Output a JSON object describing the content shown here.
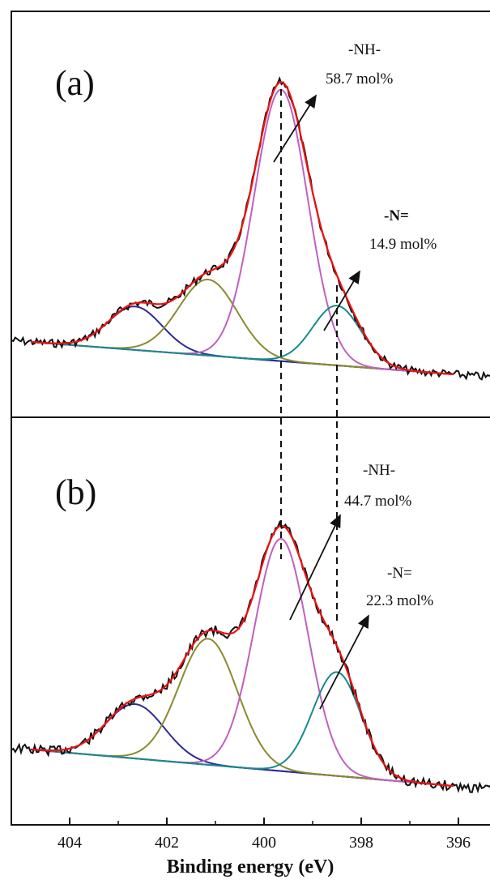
{
  "chart_data": [
    {
      "panel": "(a)",
      "type": "line",
      "xlabel": "",
      "ylabel": "",
      "xlim": [
        405.2,
        395.2
      ],
      "x_reversed": true,
      "yticks": false,
      "annotations": [
        {
          "label": "-NH-",
          "value": "58.7 mol%"
        },
        {
          "label": "-N=",
          "value": "14.9 mol%"
        }
      ],
      "series": [
        {
          "role": "background",
          "color": "#2b2b8f"
        },
        {
          "role": "component",
          "center": 402.65,
          "height": 0.16,
          "sigma": 0.55,
          "color": "#2c2c96"
        },
        {
          "role": "component",
          "center": 401.15,
          "height": 0.28,
          "sigma": 0.6,
          "color": "#8a8a2e"
        },
        {
          "role": "component",
          "center": 399.65,
          "height": 1.0,
          "sigma": 0.55,
          "color": "#c060c0"
        },
        {
          "role": "component",
          "center": 398.5,
          "height": 0.22,
          "sigma": 0.5,
          "color": "#1a8a8a"
        },
        {
          "role": "envelope",
          "color": "#ee1111"
        },
        {
          "role": "measured",
          "color": "#111111"
        }
      ],
      "reference_lines": [
        399.65,
        398.5
      ]
    },
    {
      "panel": "(b)",
      "type": "line",
      "xlabel": "Binding energy (eV)",
      "ylabel": "",
      "xlim": [
        405.2,
        395.2
      ],
      "x_reversed": true,
      "xticks": [
        404,
        402,
        400,
        398,
        396
      ],
      "yticks": false,
      "annotations": [
        {
          "label": "-NH-",
          "value": "44.7 mol%"
        },
        {
          "label": "-N=",
          "value": "22.3 mol%"
        }
      ],
      "series": [
        {
          "role": "background",
          "color": "#2b2b8f"
        },
        {
          "role": "component",
          "center": 402.65,
          "height": 0.22,
          "sigma": 0.6,
          "color": "#2c2c96"
        },
        {
          "role": "component",
          "center": 401.15,
          "height": 0.51,
          "sigma": 0.6,
          "color": "#8a8a2e"
        },
        {
          "role": "component",
          "center": 399.65,
          "height": 0.94,
          "sigma": 0.55,
          "color": "#c060c0"
        },
        {
          "role": "component",
          "center": 398.5,
          "height": 0.42,
          "sigma": 0.5,
          "color": "#1a8a8a"
        },
        {
          "role": "envelope",
          "color": "#ee1111"
        },
        {
          "role": "measured",
          "color": "#111111"
        }
      ],
      "reference_lines": [
        399.65,
        398.5
      ]
    }
  ]
}
